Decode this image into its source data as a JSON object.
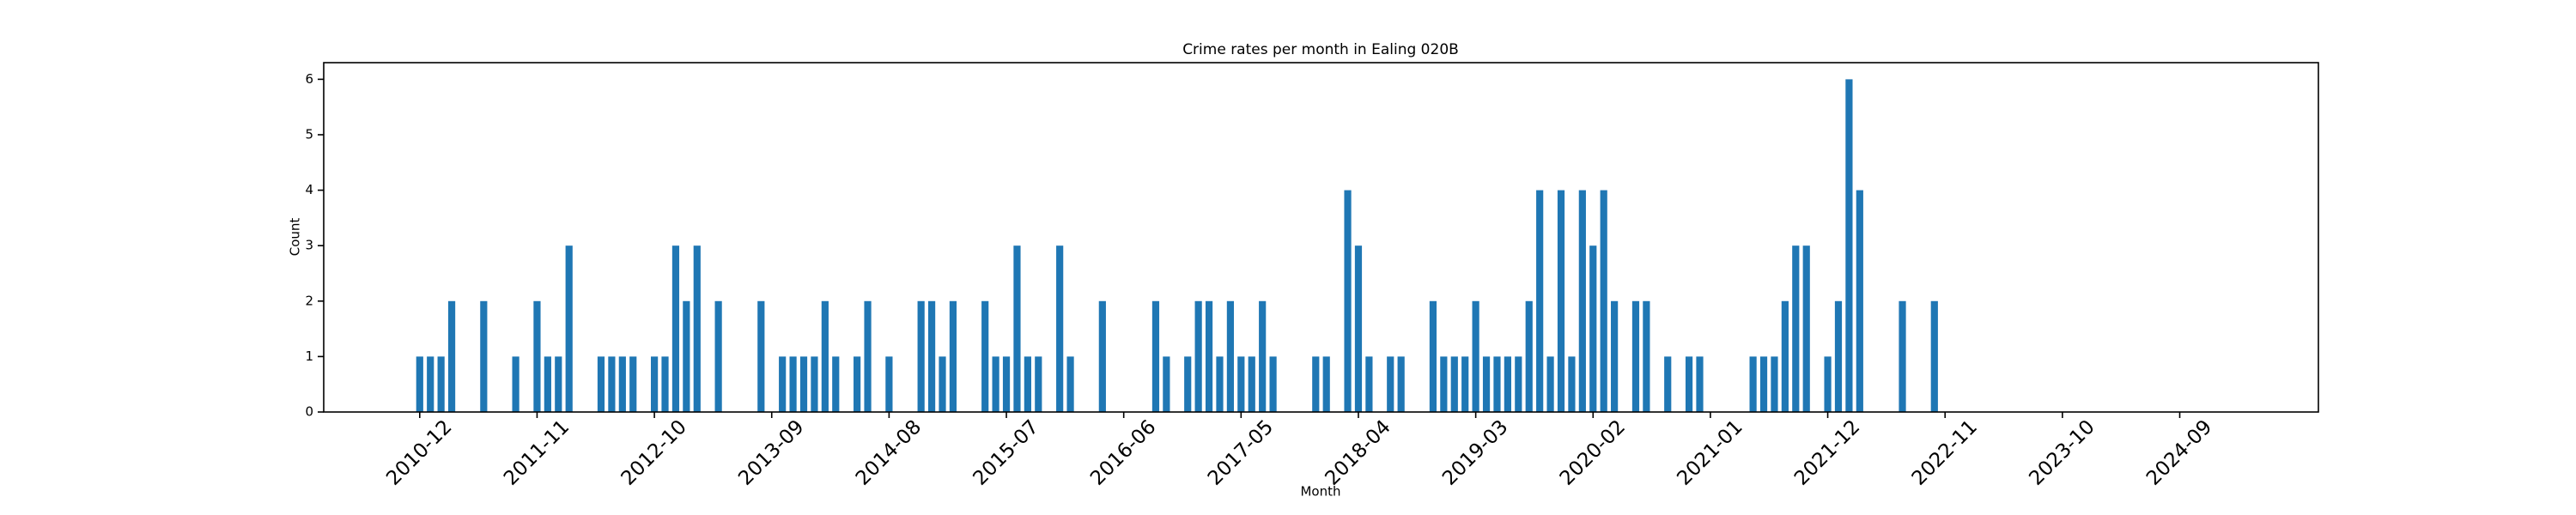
{
  "chart_data": {
    "type": "bar",
    "title": "Crime rates per month in Ealing 020B",
    "x_label": "Month",
    "y_label": "Count",
    "color": "#1f77b4",
    "grid": false,
    "x": [
      "2010-12",
      "2011-01",
      "2011-02",
      "2011-03",
      "2011-06",
      "2011-09",
      "2011-11",
      "2011-12",
      "2012-01",
      "2012-02",
      "2012-05",
      "2012-06",
      "2012-07",
      "2012-08",
      "2012-10",
      "2012-11",
      "2012-12",
      "2013-01",
      "2013-02",
      "2013-04",
      "2013-08",
      "2013-10",
      "2013-11",
      "2013-12",
      "2014-01",
      "2014-02",
      "2014-03",
      "2014-05",
      "2014-06",
      "2014-08",
      "2014-11",
      "2014-12",
      "2015-01",
      "2015-02",
      "2015-05",
      "2015-06",
      "2015-07",
      "2015-08",
      "2015-09",
      "2015-10",
      "2015-12",
      "2016-01",
      "2016-04",
      "2016-09",
      "2016-10",
      "2016-12",
      "2017-01",
      "2017-02",
      "2017-03",
      "2017-04",
      "2017-05",
      "2017-06",
      "2017-07",
      "2017-08",
      "2017-12",
      "2018-01",
      "2018-03",
      "2018-04",
      "2018-05",
      "2018-07",
      "2018-08",
      "2018-11",
      "2018-12",
      "2019-01",
      "2019-02",
      "2019-03",
      "2019-04",
      "2019-05",
      "2019-06",
      "2019-07",
      "2019-08",
      "2019-09",
      "2019-10",
      "2019-11",
      "2019-12",
      "2020-01",
      "2020-02",
      "2020-03",
      "2020-04",
      "2020-06",
      "2020-07",
      "2020-09",
      "2020-11",
      "2020-12",
      "2021-05",
      "2021-06",
      "2021-07",
      "2021-08",
      "2021-09",
      "2021-10",
      "2021-12",
      "2022-01",
      "2022-02",
      "2022-03",
      "2022-07",
      "2022-10"
    ],
    "values": [
      1,
      1,
      1,
      2,
      2,
      1,
      2,
      1,
      1,
      3,
      1,
      1,
      1,
      1,
      1,
      1,
      3,
      2,
      3,
      2,
      2,
      1,
      1,
      1,
      1,
      2,
      1,
      1,
      2,
      1,
      2,
      2,
      1,
      2,
      2,
      1,
      1,
      3,
      1,
      1,
      3,
      1,
      2,
      2,
      1,
      1,
      2,
      2,
      1,
      2,
      1,
      1,
      2,
      1,
      1,
      1,
      4,
      3,
      1,
      1,
      1,
      2,
      1,
      1,
      1,
      2,
      1,
      1,
      1,
      1,
      2,
      4,
      1,
      4,
      1,
      4,
      3,
      4,
      2,
      2,
      2,
      1,
      1,
      1,
      1,
      1,
      1,
      2,
      3,
      3,
      1,
      2,
      6,
      4,
      2,
      2
    ],
    "xlim": [
      "2010-03",
      "2025-10"
    ],
    "xticks": [
      "2010-12",
      "2011-11",
      "2012-10",
      "2013-09",
      "2014-08",
      "2015-07",
      "2016-06",
      "2017-05",
      "2018-04",
      "2019-03",
      "2020-02",
      "2021-01",
      "2021-12",
      "2022-11",
      "2023-10",
      "2024-09"
    ],
    "ylim": [
      0,
      6.3
    ],
    "yticks": [
      0,
      1,
      2,
      3,
      4,
      5,
      6
    ]
  }
}
